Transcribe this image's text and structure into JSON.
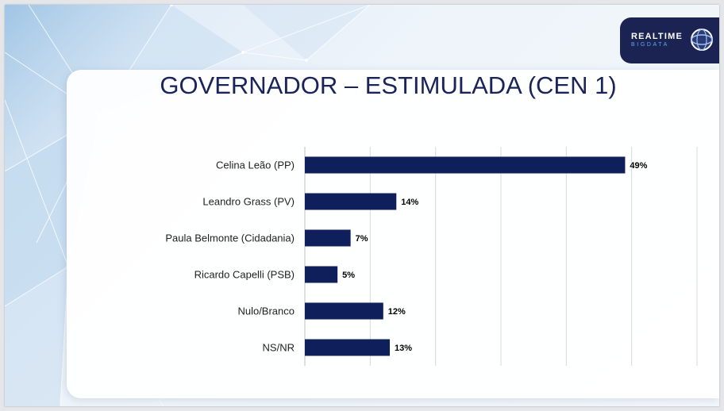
{
  "slide_title": "GOVERNADOR – ESTIMULADA (CEN 1)",
  "logo": {
    "line1": "REALTIME",
    "line2": "BIGDATA"
  },
  "colors": {
    "bar": "#0e1f5b",
    "title": "#1a2458",
    "logo_bg": "#1a2352",
    "gridline": "#d9d9d9"
  },
  "chart_data": {
    "type": "bar",
    "orientation": "horizontal",
    "title": "GOVERNADOR – ESTIMULADA (CEN 1)",
    "categories": [
      "Celina Leão (PP)",
      "Leandro Grass (PV)",
      "Paula Belmonte (Cidadania)",
      "Ricardo Capelli (PSB)",
      "Nulo/Branco",
      "NS/NR"
    ],
    "values": [
      49,
      14,
      7,
      5,
      12,
      13
    ],
    "value_labels": [
      "49%",
      "14%",
      "7%",
      "5%",
      "12%",
      "13%"
    ],
    "unit": "%",
    "xlim": [
      0,
      60
    ],
    "grid": true
  }
}
